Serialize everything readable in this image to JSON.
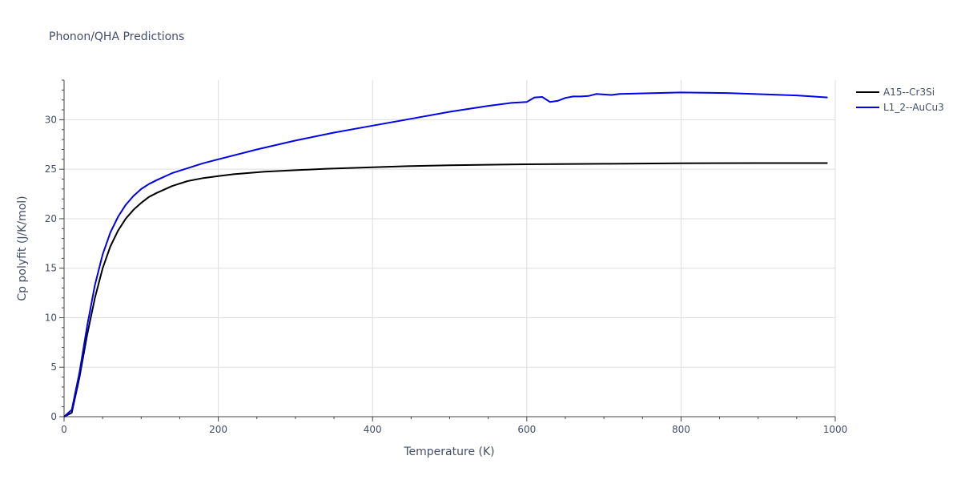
{
  "chart_data": {
    "type": "line",
    "title": "Phonon/QHA Predictions",
    "xlabel": "Temperature (K)",
    "ylabel": "Cp polyfit (J/K/mol)",
    "xlim": [
      0,
      1000
    ],
    "ylim": [
      0,
      34
    ],
    "xticks": [
      0,
      200,
      400,
      600,
      800,
      1000
    ],
    "yticks": [
      0,
      5,
      10,
      15,
      20,
      25,
      30
    ],
    "grid": true,
    "legend_position": "top-right",
    "series": [
      {
        "name": "A15--Cr3Si",
        "color": "#000000",
        "x": [
          0,
          10,
          20,
          30,
          40,
          50,
          60,
          70,
          80,
          90,
          100,
          110,
          120,
          140,
          160,
          180,
          200,
          220,
          260,
          300,
          340,
          400,
          440,
          500,
          600,
          700,
          800,
          900,
          990
        ],
        "y": [
          0,
          0.4,
          4.0,
          8.3,
          12.0,
          15.0,
          17.2,
          18.8,
          20.0,
          20.9,
          21.6,
          22.2,
          22.6,
          23.3,
          23.8,
          24.1,
          24.3,
          24.5,
          24.75,
          24.9,
          25.05,
          25.2,
          25.3,
          25.4,
          25.5,
          25.55,
          25.6,
          25.62,
          25.62
        ]
      },
      {
        "name": "L1_2--AuCu3",
        "color": "#0000ee",
        "x": [
          0,
          10,
          20,
          30,
          40,
          50,
          60,
          70,
          80,
          90,
          100,
          110,
          120,
          140,
          160,
          180,
          200,
          250,
          300,
          350,
          400,
          450,
          500,
          550,
          580,
          600,
          610,
          620,
          630,
          640,
          650,
          660,
          670,
          680,
          690,
          700,
          710,
          720,
          800,
          860,
          950,
          990
        ],
        "y": [
          0,
          0.7,
          4.5,
          9.2,
          13.3,
          16.4,
          18.6,
          20.2,
          21.4,
          22.3,
          23.0,
          23.5,
          23.9,
          24.6,
          25.1,
          25.6,
          26.0,
          27.0,
          27.9,
          28.7,
          29.4,
          30.1,
          30.8,
          31.4,
          31.7,
          31.8,
          32.25,
          32.3,
          31.8,
          31.9,
          32.2,
          32.35,
          32.35,
          32.4,
          32.6,
          32.55,
          32.5,
          32.6,
          32.75,
          32.7,
          32.45,
          32.25
        ]
      }
    ]
  }
}
